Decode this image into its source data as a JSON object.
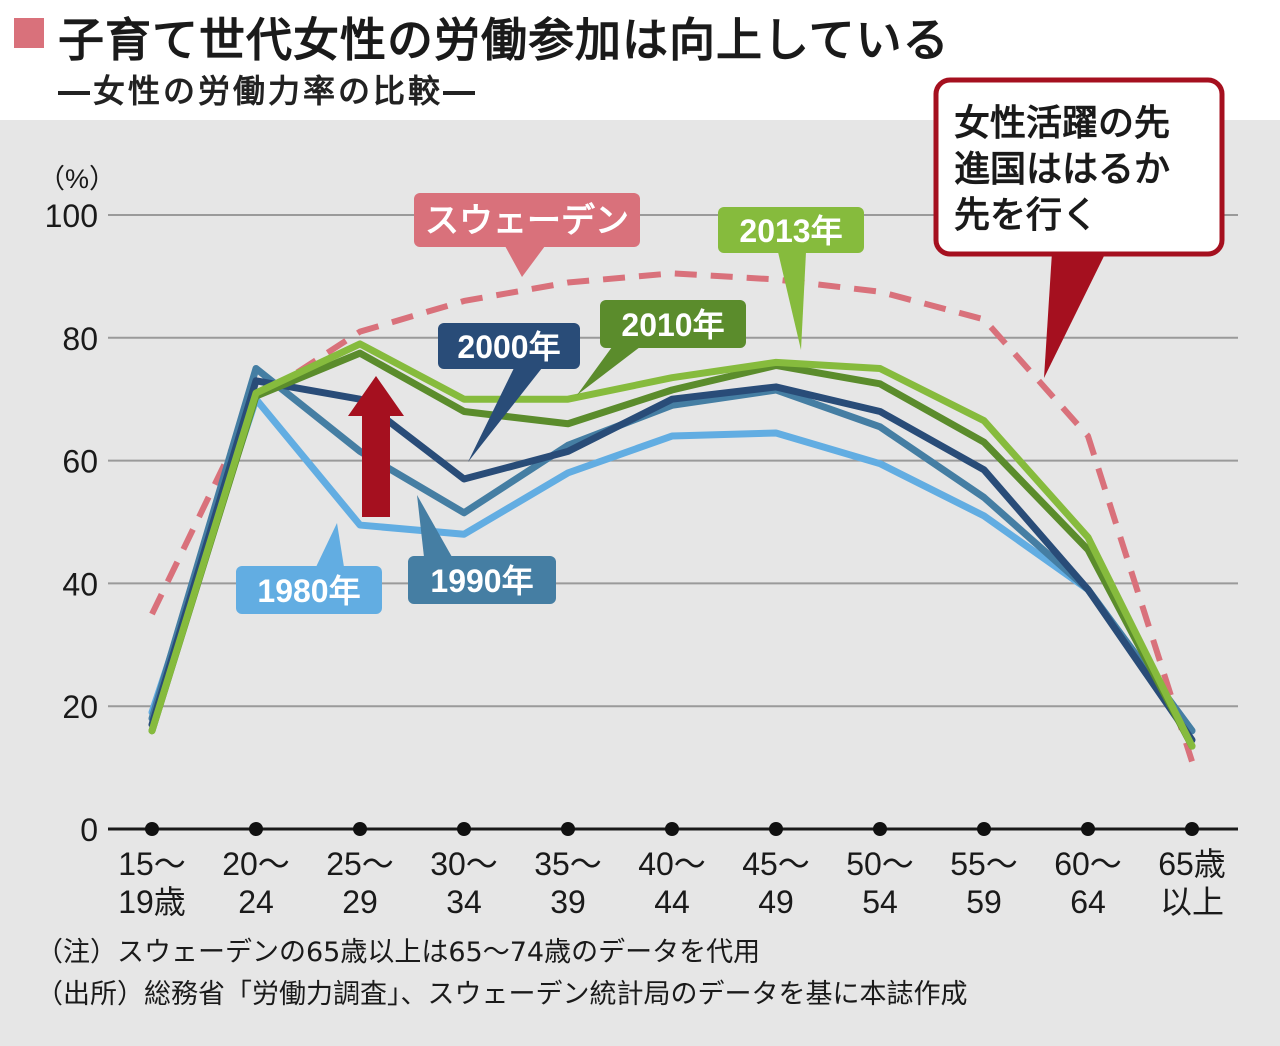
{
  "header": {
    "title": "子育て世代女性の労働参加は向上している",
    "subtitle": "―女性の労働力率の比較―"
  },
  "colors": {
    "sweden": "#d9717b",
    "y1980": "#62ade2",
    "y1990": "#457ea3",
    "y2000": "#294c78",
    "y2010": "#5b8c2c",
    "y2013": "#86bb3d",
    "arrow": "#a5101f",
    "callout_border": "#a5101f",
    "title_mark": "#d9717b"
  },
  "chart_data": {
    "type": "line",
    "ylabel": "（%）",
    "ylim": [
      0,
      100
    ],
    "yticks": [
      0,
      20,
      40,
      60,
      80,
      100
    ],
    "categories": [
      [
        "15～",
        "19歳"
      ],
      [
        "20～",
        "24"
      ],
      [
        "25～",
        "29"
      ],
      [
        "30～",
        "34"
      ],
      [
        "35～",
        "39"
      ],
      [
        "40～",
        "44"
      ],
      [
        "45～",
        "49"
      ],
      [
        "50～",
        "54"
      ],
      [
        "55～",
        "59"
      ],
      [
        "60～",
        "64"
      ],
      [
        "65歳",
        "以上"
      ]
    ],
    "grid": true,
    "series": [
      {
        "key": "sweden",
        "name": "スウェーデン",
        "style": "dashed",
        "values": [
          35,
          70,
          81,
          86,
          89,
          90.5,
          89.5,
          87.5,
          83,
          64,
          11
        ],
        "label_color": "sweden"
      },
      {
        "key": "y1980",
        "name": "1980年",
        "style": "solid",
        "values": [
          19,
          70,
          49.5,
          48,
          58,
          64,
          64.5,
          59.5,
          51,
          39,
          16
        ],
        "label_color": "y1980"
      },
      {
        "key": "y1990",
        "name": "1990年",
        "style": "solid",
        "values": [
          18,
          75,
          61.5,
          51.5,
          62.5,
          69,
          71.5,
          65.5,
          54,
          39,
          16
        ],
        "label_color": "y1990"
      },
      {
        "key": "y2000",
        "name": "2000年",
        "style": "solid",
        "values": [
          17,
          73,
          70,
          57,
          61.5,
          70,
          72,
          68,
          58.5,
          39,
          14.5
        ],
        "label_color": "y2000"
      },
      {
        "key": "y2010",
        "name": "2010年",
        "style": "solid",
        "values": [
          16,
          70.5,
          77.5,
          68,
          66,
          71.5,
          75.5,
          72.5,
          63,
          45.5,
          13.5
        ],
        "label_color": "y2010"
      },
      {
        "key": "y2013",
        "name": "2013年",
        "style": "solid",
        "values": [
          16,
          71,
          79,
          70,
          70,
          73.5,
          76,
          75,
          66.5,
          47.5,
          13.5
        ],
        "label_color": "y2013"
      }
    ],
    "annotations": {
      "callout": [
        "女性活躍の先",
        "進国ははるか",
        "先を行く"
      ]
    }
  },
  "notes": [
    "（注）スウェーデンの65歳以上は65～74歳のデータを代用",
    "（出所）総務省「労働力調査」、スウェーデン統計局のデータを基に本誌作成"
  ]
}
